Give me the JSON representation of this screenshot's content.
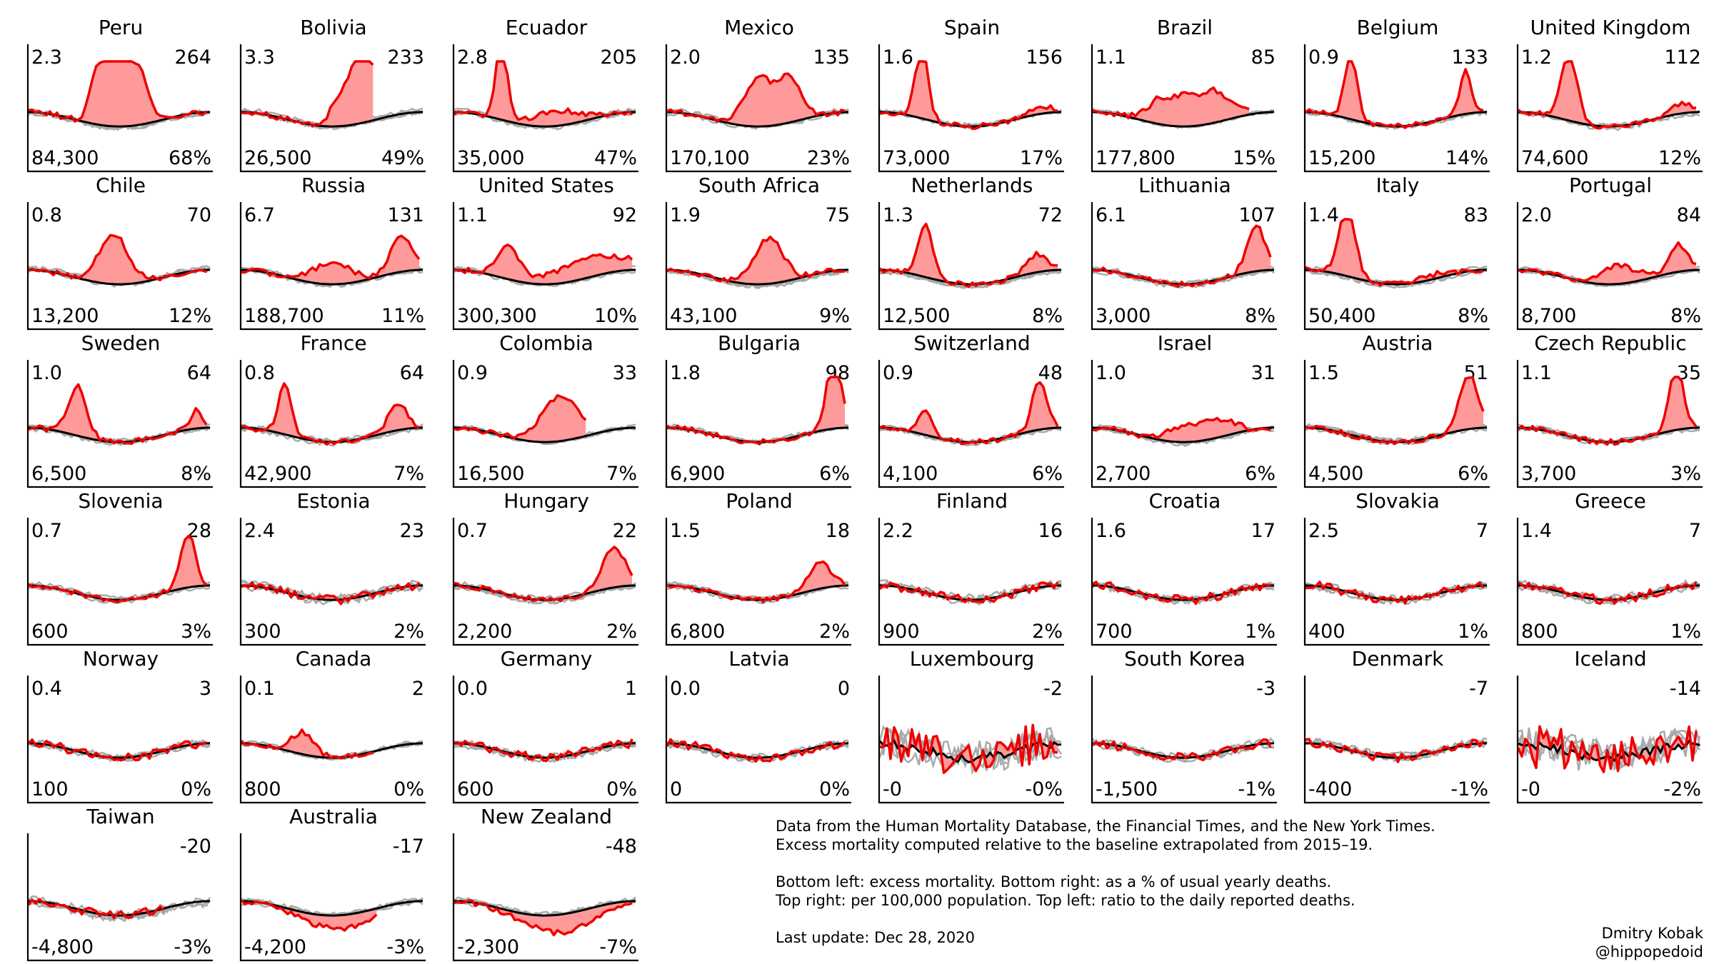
{
  "chart_data": {
    "type": "line",
    "panels": [
      {
        "title": "Peru",
        "ratio": "2.3",
        "per100k": "264",
        "excess": "84,300",
        "pct": "68%",
        "shape": "broad",
        "c": 0.5,
        "w": 0.14,
        "amp": 0.82
      },
      {
        "title": "Bolivia",
        "ratio": "3.3",
        "per100k": "233",
        "excess": "26,500",
        "pct": "49%",
        "shape": "triangle",
        "c": 0.68,
        "w": 0.24,
        "amp": 0.88,
        "end": 0.72
      },
      {
        "title": "Ecuador",
        "ratio": "2.8",
        "per100k": "205",
        "excess": "35,000",
        "pct": "47%",
        "shape": "spike2",
        "c": 0.26,
        "w": 0.03,
        "amp": 0.95,
        "c2": 0.56,
        "w2": 0.12,
        "amp2": 0.17
      },
      {
        "title": "Mexico",
        "ratio": "2.0",
        "per100k": "135",
        "excess": "170,100",
        "pct": "23%",
        "shape": "broad",
        "c": 0.58,
        "w": 0.16,
        "amp": 0.52
      },
      {
        "title": "Spain",
        "ratio": "1.6",
        "per100k": "156",
        "excess": "73,000",
        "pct": "17%",
        "shape": "spike2",
        "c": 0.23,
        "w": 0.035,
        "amp": 0.8,
        "c2": 0.88,
        "w2": 0.06,
        "amp2": 0.09
      },
      {
        "title": "Brazil",
        "ratio": "1.1",
        "per100k": "85",
        "excess": "177,800",
        "pct": "15%",
        "shape": "broad",
        "c": 0.55,
        "w": 0.22,
        "amp": 0.35,
        "end": 0.86
      },
      {
        "title": "Belgium",
        "ratio": "0.9",
        "per100k": "133",
        "excess": "15,200",
        "pct": "14%",
        "shape": "spike2",
        "c": 0.25,
        "w": 0.035,
        "amp": 0.72,
        "c2": 0.88,
        "w2": 0.03,
        "amp2": 0.48
      },
      {
        "title": "United Kingdom",
        "ratio": "1.2",
        "per100k": "112",
        "excess": "74,600",
        "pct": "12%",
        "shape": "spike2",
        "c": 0.28,
        "w": 0.045,
        "amp": 0.72,
        "c2": 0.9,
        "w2": 0.06,
        "amp2": 0.12
      },
      {
        "title": "Chile",
        "ratio": "0.8",
        "per100k": "70",
        "excess": "13,200",
        "pct": "12%",
        "shape": "peak",
        "c": 0.47,
        "w": 0.08,
        "amp": 0.55
      },
      {
        "title": "Russia",
        "ratio": "6.7",
        "per100k": "131",
        "excess": "188,700",
        "pct": "11%",
        "shape": "spike2",
        "c": 0.5,
        "w": 0.1,
        "amp": 0.25,
        "c2": 0.88,
        "w2": 0.06,
        "amp2": 0.4
      },
      {
        "title": "United States",
        "ratio": "1.1",
        "per100k": "92",
        "excess": "300,300",
        "pct": "10%",
        "shape": "spike2",
        "c": 0.3,
        "w": 0.06,
        "amp": 0.35,
        "c2": 0.75,
        "w2": 0.2,
        "amp2": 0.22
      },
      {
        "title": "South Africa",
        "ratio": "1.9",
        "per100k": "75",
        "excess": "43,100",
        "pct": "9%",
        "shape": "peak",
        "c": 0.56,
        "w": 0.08,
        "amp": 0.5
      },
      {
        "title": "Netherlands",
        "ratio": "1.3",
        "per100k": "72",
        "excess": "12,500",
        "pct": "8%",
        "shape": "spike2",
        "c": 0.25,
        "w": 0.04,
        "amp": 0.6,
        "c2": 0.86,
        "w2": 0.06,
        "amp2": 0.2
      },
      {
        "title": "Lithuania",
        "ratio": "6.1",
        "per100k": "107",
        "excess": "3,000",
        "pct": "8%",
        "shape": "late",
        "c": 0.9,
        "w": 0.05,
        "amp": 0.5
      },
      {
        "title": "Italy",
        "ratio": "1.4",
        "per100k": "83",
        "excess": "50,400",
        "pct": "8%",
        "shape": "spike2",
        "c": 0.23,
        "w": 0.045,
        "amp": 0.75,
        "c2": 0.7,
        "w2": 0.1,
        "amp2": 0.05
      },
      {
        "title": "Portugal",
        "ratio": "2.0",
        "per100k": "84",
        "excess": "8,700",
        "pct": "8%",
        "shape": "spike2",
        "c": 0.55,
        "w": 0.1,
        "amp": 0.2,
        "c2": 0.88,
        "w2": 0.05,
        "amp2": 0.3
      },
      {
        "title": "Sweden",
        "ratio": "1.0",
        "per100k": "64",
        "excess": "6,500",
        "pct": "8%",
        "shape": "spike2",
        "c": 0.27,
        "w": 0.05,
        "amp": 0.55,
        "c2": 0.92,
        "w2": 0.03,
        "amp2": 0.2
      },
      {
        "title": "France",
        "ratio": "0.8",
        "per100k": "64",
        "excess": "42,900",
        "pct": "7%",
        "shape": "spike2",
        "c": 0.24,
        "w": 0.035,
        "amp": 0.58,
        "c2": 0.86,
        "w2": 0.05,
        "amp2": 0.3
      },
      {
        "title": "Colombia",
        "ratio": "0.9",
        "per100k": "33",
        "excess": "16,500",
        "pct": "7%",
        "shape": "peak",
        "c": 0.58,
        "w": 0.1,
        "amp": 0.5,
        "end": 0.72
      },
      {
        "title": "Bulgaria",
        "ratio": "1.8",
        "per100k": "98",
        "excess": "6,900",
        "pct": "6%",
        "shape": "late",
        "c": 0.92,
        "w": 0.04,
        "amp": 0.8
      },
      {
        "title": "Switzerland",
        "ratio": "0.9",
        "per100k": "48",
        "excess": "4,100",
        "pct": "6%",
        "shape": "spike2",
        "c": 0.25,
        "w": 0.035,
        "amp": 0.3,
        "c2": 0.88,
        "w2": 0.04,
        "amp2": 0.55
      },
      {
        "title": "Israel",
        "ratio": "1.0",
        "per100k": "31",
        "excess": "2,700",
        "pct": "6%",
        "shape": "broad",
        "c": 0.6,
        "w": 0.18,
        "amp": 0.2
      },
      {
        "title": "Austria",
        "ratio": "1.5",
        "per100k": "51",
        "excess": "4,500",
        "pct": "6%",
        "shape": "late",
        "c": 0.9,
        "w": 0.05,
        "amp": 0.6
      },
      {
        "title": "Czech Republic",
        "ratio": "1.1",
        "per100k": "35",
        "excess": "3,700",
        "pct": "3%",
        "shape": "late",
        "c": 0.87,
        "w": 0.04,
        "amp": 0.7
      },
      {
        "title": "Slovenia",
        "ratio": "0.7",
        "per100k": "28",
        "excess": "600",
        "pct": "3%",
        "shape": "late",
        "c": 0.88,
        "w": 0.04,
        "amp": 0.6
      },
      {
        "title": "Estonia",
        "ratio": "2.4",
        "per100k": "23",
        "excess": "300",
        "pct": "2%",
        "shape": "noise",
        "c": 0.9,
        "w": 0.05,
        "amp": 0.12
      },
      {
        "title": "Hungary",
        "ratio": "0.7",
        "per100k": "22",
        "excess": "2,200",
        "pct": "2%",
        "shape": "late",
        "c": 0.88,
        "w": 0.06,
        "amp": 0.45
      },
      {
        "title": "Poland",
        "ratio": "1.5",
        "per100k": "18",
        "excess": "6,800",
        "pct": "2%",
        "shape": "late",
        "c": 0.84,
        "w": 0.06,
        "amp": 0.3
      },
      {
        "title": "Finland",
        "ratio": "2.2",
        "per100k": "16",
        "excess": "900",
        "pct": "2%",
        "shape": "noise",
        "c": 0.3,
        "w": 0.05,
        "amp": 0.05
      },
      {
        "title": "Croatia",
        "ratio": "1.6",
        "per100k": "17",
        "excess": "700",
        "pct": "1%",
        "shape": "noise",
        "c": 0.9,
        "w": 0.05,
        "amp": 0.05
      },
      {
        "title": "Slovakia",
        "ratio": "2.5",
        "per100k": "7",
        "excess": "400",
        "pct": "1%",
        "shape": "noise",
        "c": 0.9,
        "w": 0.05,
        "amp": 0.05
      },
      {
        "title": "Greece",
        "ratio": "1.4",
        "per100k": "7",
        "excess": "800",
        "pct": "1%",
        "shape": "noise",
        "c": 0.5,
        "w": 0.05,
        "amp": 0.05
      },
      {
        "title": "Norway",
        "ratio": "0.4",
        "per100k": "3",
        "excess": "100",
        "pct": "0%",
        "shape": "noise",
        "c": 0.3,
        "w": 0.05,
        "amp": 0.03
      },
      {
        "title": "Canada",
        "ratio": "0.1",
        "per100k": "2",
        "excess": "800",
        "pct": "0%",
        "shape": "peak",
        "c": 0.34,
        "w": 0.06,
        "amp": 0.25,
        "end": 0.72
      },
      {
        "title": "Germany",
        "ratio": "0.0",
        "per100k": "1",
        "excess": "600",
        "pct": "0%",
        "shape": "noise",
        "c": 0.3,
        "w": 0.05,
        "amp": 0.03
      },
      {
        "title": "Latvia",
        "ratio": "0.0",
        "per100k": "0",
        "excess": "0",
        "pct": "0%",
        "shape": "noise",
        "c": 0.3,
        "w": 0.05,
        "amp": 0.05
      },
      {
        "title": "Luxembourg",
        "ratio": "",
        "per100k": "-2",
        "excess": "-0",
        "pct": "-0%",
        "shape": "wild",
        "c": 0.3,
        "w": 0.05,
        "amp": 0.05
      },
      {
        "title": "South Korea",
        "ratio": "",
        "per100k": "-3",
        "excess": "-1,500",
        "pct": "-1%",
        "shape": "noise",
        "c": 0.3,
        "w": 0.05,
        "amp": 0.02
      },
      {
        "title": "Denmark",
        "ratio": "",
        "per100k": "-7",
        "excess": "-400",
        "pct": "-1%",
        "shape": "noise",
        "c": 0.25,
        "w": 0.04,
        "amp": 0.1
      },
      {
        "title": "Iceland",
        "ratio": "",
        "per100k": "-14",
        "excess": "-0",
        "pct": "-2%",
        "shape": "wild",
        "c": 0.3,
        "w": 0.05,
        "amp": 0.05
      },
      {
        "title": "Taiwan",
        "ratio": "",
        "per100k": "-20",
        "excess": "-4,800",
        "pct": "-3%",
        "shape": "noise",
        "c": 0.3,
        "w": 0.05,
        "amp": 0.02,
        "end": 0.75
      },
      {
        "title": "Australia",
        "ratio": "",
        "per100k": "-17",
        "excess": "-4,200",
        "pct": "-3%",
        "shape": "dip",
        "c": 0.55,
        "w": 0.18,
        "amp": 0.15,
        "end": 0.75
      },
      {
        "title": "New Zealand",
        "ratio": "",
        "per100k": "-48",
        "excess": "-2,300",
        "pct": "-7%",
        "shape": "dip",
        "c": 0.6,
        "w": 0.18,
        "amp": 0.2
      }
    ]
  },
  "notes": {
    "line1": "Data from the Human Mortality Database, the Financial Times, and the New York Times.",
    "line2": "Excess mortality computed relative to the baseline extrapolated from 2015–19.",
    "line3": "Bottom left: excess mortality. Bottom right: as a % of usual yearly deaths.",
    "line4": "Top right: per 100,000 population. Top left: ratio to the daily reported deaths.",
    "line5": "Last update: Dec 28, 2020"
  },
  "credit": {
    "name": "Dmitry Kobak",
    "handle": "@hippopedoid"
  },
  "colors": {
    "current": "#ee0000",
    "fill": "#ff9a9a",
    "baseline": "#000000",
    "past": "#aaaaaa"
  }
}
